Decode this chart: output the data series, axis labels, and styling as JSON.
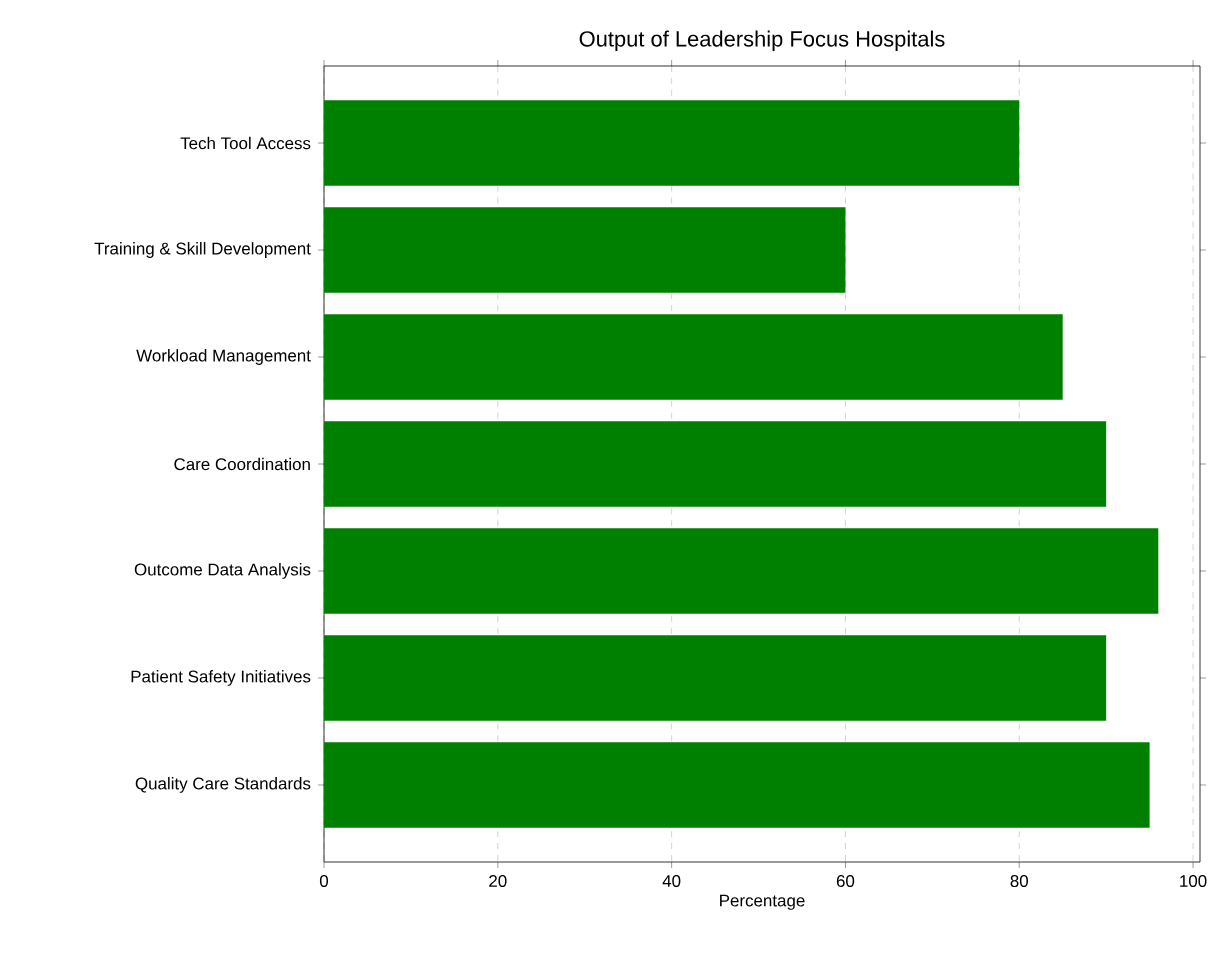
{
  "chart_data": {
    "type": "bar",
    "orientation": "horizontal",
    "title": "Output of Leadership Focus Hospitals",
    "xlabel": "Percentage",
    "categories": [
      "Tech Tool Access",
      "Training & Skill Development",
      "Workload Management",
      "Care Coordination",
      "Outcome Data Analysis",
      "Patient Safety Initiatives",
      "Quality Care Standards"
    ],
    "values": [
      80,
      60,
      85,
      90,
      96,
      90,
      95
    ],
    "color": "#008000",
    "xlim": [
      0,
      100.8
    ],
    "xticks": [
      0,
      20,
      40,
      60,
      80,
      100
    ],
    "grid": "x"
  }
}
